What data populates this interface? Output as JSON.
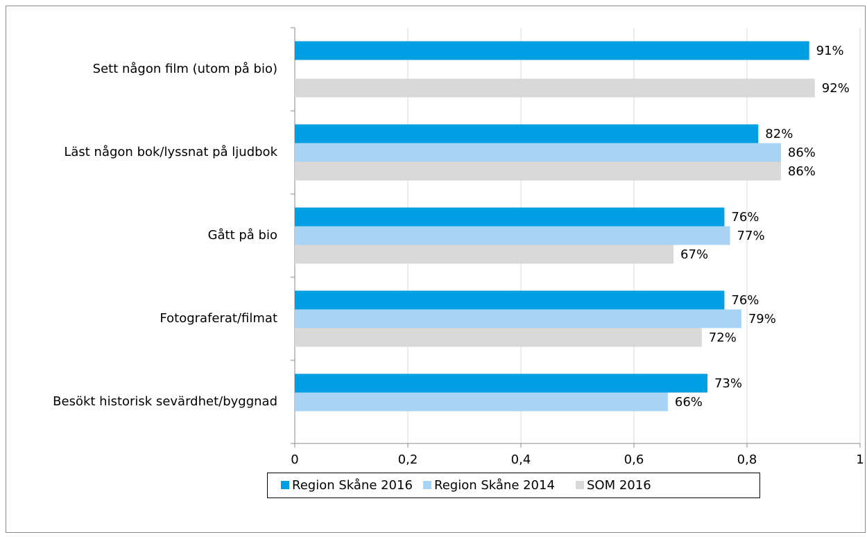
{
  "chart_data": {
    "type": "hbar",
    "categories": [
      "Sett någon film (utom på bio)",
      "Läst någon bok/lyssnat på ljudbok",
      "Gått på bio",
      "Fotograferat/filmat",
      "Besökt historisk sevärdhet/byggnad"
    ],
    "series": [
      {
        "name": "Region Skåne 2016",
        "color": "#009fe3",
        "values": [
          0.91,
          0.82,
          0.76,
          0.76,
          0.73
        ],
        "value_labels": [
          "91%",
          "82%",
          "76%",
          "76%",
          "73%"
        ]
      },
      {
        "name": "Region Skåne 2014",
        "color": "#a9d3f5",
        "values": [
          null,
          0.86,
          0.77,
          0.79,
          0.66
        ],
        "value_labels": [
          null,
          "86%",
          "77%",
          "79%",
          "66%"
        ]
      },
      {
        "name": "SOM 2016",
        "color": "#d9d9d9",
        "values": [
          0.92,
          0.86,
          0.67,
          0.72,
          null
        ],
        "value_labels": [
          "92%",
          "86%",
          "67%",
          "72%",
          null
        ]
      }
    ],
    "xlim": [
      0,
      1
    ],
    "xticks": [
      0,
      {
        "value": 0.2,
        "label": "0,2"
      },
      {
        "value": 0.4,
        "label": "0,4"
      },
      {
        "value": 0.6,
        "label": "0,6"
      },
      {
        "value": 0.8,
        "label": "0,8"
      },
      1
    ],
    "grid": true,
    "legend": "bottom"
  }
}
